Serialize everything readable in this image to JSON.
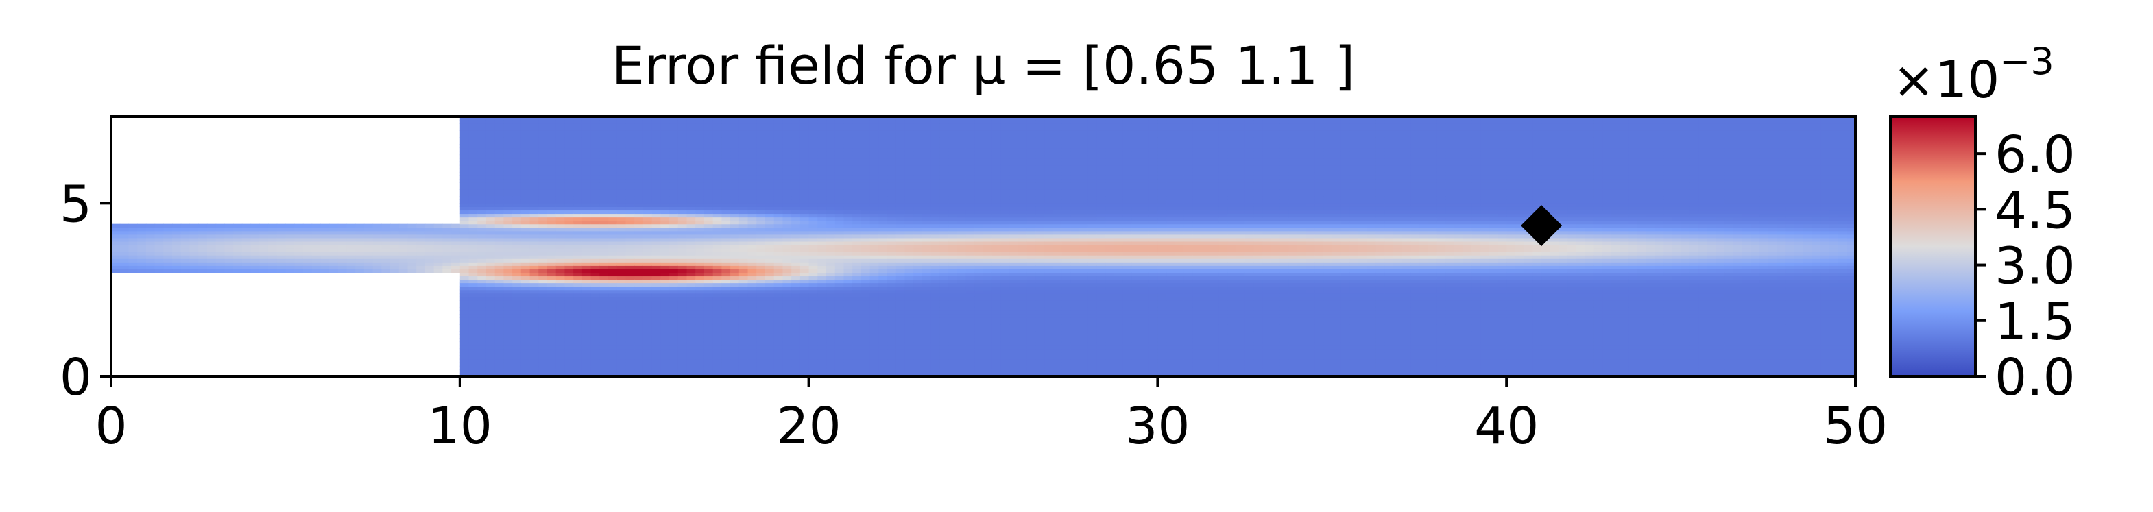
{
  "chart_data": {
    "type": "heatmap",
    "title": "Error field for μ = [0.65 1.1 ]",
    "xlabel": "",
    "ylabel": "",
    "xlim": [
      0,
      50
    ],
    "ylim": [
      0,
      7.5
    ],
    "x_ticks": [
      0,
      10,
      20,
      30,
      40,
      50
    ],
    "x_tick_labels": [
      "0",
      "10",
      "20",
      "30",
      "40",
      "50"
    ],
    "y_ticks": [
      0,
      5
    ],
    "y_tick_labels": [
      "0",
      "5"
    ],
    "grid": false,
    "colormap": "coolwarm",
    "colorbar": {
      "range": [
        0,
        7.0
      ],
      "ticks": [
        0.0,
        1.5,
        3.0,
        4.5,
        6.0
      ],
      "tick_labels": [
        "0.0",
        "1.5",
        "3.0",
        "4.5",
        "6.0"
      ],
      "scale_label": "×10",
      "scale_exponent": "−3"
    },
    "domain": {
      "inlet_channel": {
        "x": [
          0,
          10
        ],
        "y": [
          3.0,
          4.4
        ]
      },
      "main_chamber": {
        "x": [
          10,
          50
        ],
        "y": [
          0,
          7.5
        ]
      }
    },
    "field_features": [
      {
        "x": 14.0,
        "y": 4.5,
        "sx": 3.2,
        "sy": 0.14,
        "value": 5.4
      },
      {
        "x": 15.0,
        "y": 3.0,
        "sx": 3.6,
        "sy": 0.22,
        "value": 7.0
      },
      {
        "x": 25.0,
        "y": 3.7,
        "sx": 10.0,
        "sy": 0.35,
        "value": 3.8
      },
      {
        "x": 40.0,
        "y": 3.7,
        "sx": 10.0,
        "sy": 0.4,
        "value": 2.9
      },
      {
        "x": 5.0,
        "y": 3.7,
        "sx": 5.5,
        "sy": 0.45,
        "value": 2.9
      }
    ],
    "marker": {
      "shape": "diamond",
      "x": 41.0,
      "y": 4.35,
      "color": "#000000"
    }
  }
}
